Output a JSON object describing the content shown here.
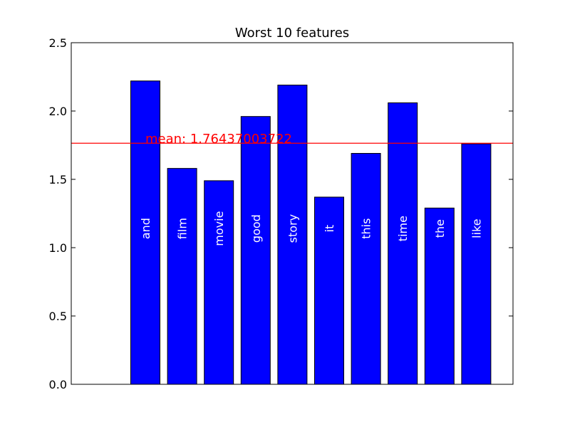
{
  "chart_data": {
    "type": "bar",
    "title": "Worst 10 features",
    "xlabel": "",
    "ylabel": "",
    "ylim": [
      0,
      2.5
    ],
    "yticks": [
      "0.0",
      "0.5",
      "1.0",
      "1.5",
      "2.0",
      "2.5"
    ],
    "categories": [
      "and",
      "film",
      "movie",
      "good",
      "story",
      "it",
      "this",
      "time",
      "the",
      "like"
    ],
    "values": [
      2.22,
      1.58,
      1.49,
      1.96,
      2.19,
      1.37,
      1.69,
      2.06,
      1.29,
      1.76
    ],
    "bar_color": "#0000ff",
    "mean": {
      "value": 1.76437003722,
      "label": "mean: 1.76437003722",
      "color": "#ff0000"
    },
    "grid": false,
    "legend": "none"
  }
}
